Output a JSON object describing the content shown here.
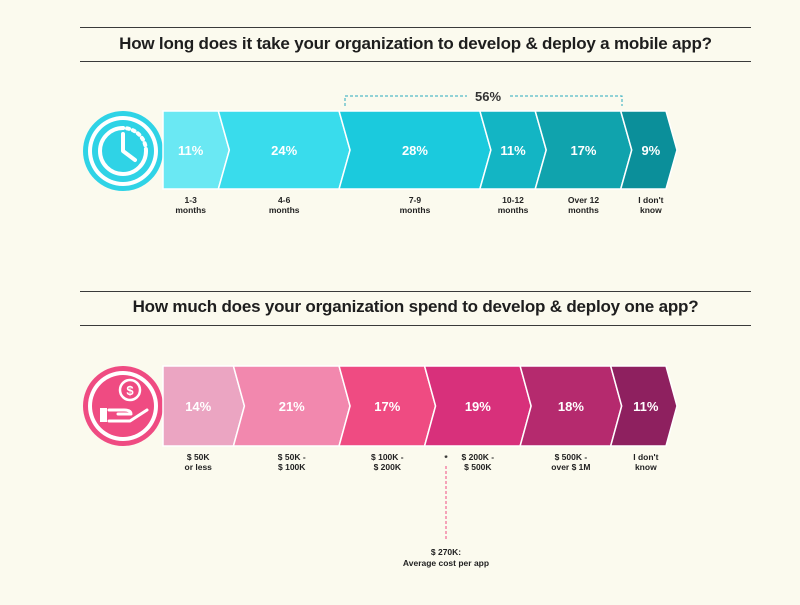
{
  "charts": {
    "time": {
      "title": "How long does it take your organization to develop & deploy a mobile app?",
      "icon": "clock-icon",
      "bracket_label": "56%"
    },
    "cost": {
      "title": "How much does your organization spend to develop & deploy one app?",
      "icon": "money-hand-icon",
      "marker_symbol": "*",
      "note_lines": [
        "$ 270K:",
        "Average cost per app"
      ]
    }
  },
  "chart_data": [
    {
      "type": "bar",
      "title": "How long does it take your organization to develop & deploy a mobile app?",
      "categories": [
        [
          "1-3",
          "months"
        ],
        [
          "4-6",
          "months"
        ],
        [
          "7-9",
          "months"
        ],
        [
          "10-12",
          "months"
        ],
        [
          "Over 12",
          "months"
        ],
        [
          "I don't",
          "know"
        ]
      ],
      "values": [
        11,
        24,
        28,
        11,
        17,
        9
      ],
      "value_labels": [
        "11%",
        "24%",
        "28%",
        "11%",
        "17%",
        "9%"
      ],
      "colors": [
        "#6ae8f3",
        "#39dcec",
        "#1bcadd",
        "#13b5c4",
        "#10a3ad",
        "#0b8f9a"
      ],
      "annotation": {
        "label": "56%",
        "covers": [
          "7-9",
          "10-12",
          "Over 12"
        ]
      }
    },
    {
      "type": "bar",
      "title": "How much does your organization spend to develop & deploy one app?",
      "categories": [
        [
          "$ 50K",
          "or less"
        ],
        [
          "$ 50K -",
          "$ 100K"
        ],
        [
          "$ 100K -",
          "$ 200K"
        ],
        [
          "$ 200K -",
          "$ 500K"
        ],
        [
          "$ 500K -",
          "over $ 1M"
        ],
        [
          "I don't",
          "know"
        ]
      ],
      "values": [
        14,
        21,
        17,
        19,
        18,
        11
      ],
      "value_labels": [
        "14%",
        "21%",
        "17%",
        "19%",
        "18%",
        "11%"
      ],
      "colors": [
        "#eba5c2",
        "#f288ae",
        "#ef4b82",
        "#d8307b",
        "#b52a6e",
        "#8e205f"
      ],
      "annotation": {
        "label": "$ 270K:",
        "detail": "Average cost per app"
      }
    }
  ]
}
